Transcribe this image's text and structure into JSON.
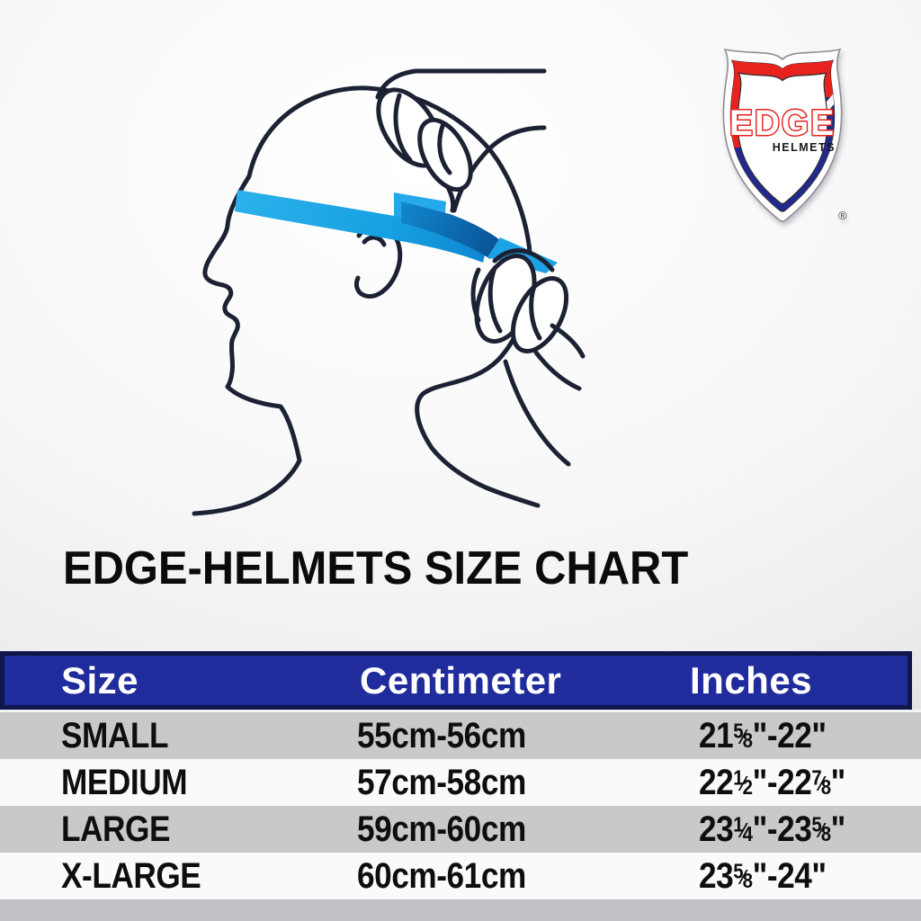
{
  "title": "EDGE-HELMETS SIZE CHART",
  "illustration": {
    "name": "head-measuring-tape-illustration",
    "line_color": "#1c2233",
    "tape_color": "#1f9fe2",
    "tape_fold_color": "#0a65b0"
  },
  "logo": {
    "name": "edge-helmets-shield-logo",
    "brand": "EDGE",
    "sub": "HELMETS",
    "registered": "®",
    "red": "#e8231d",
    "blue": "#202a8f"
  },
  "table": {
    "header_bg": "#202c9c",
    "header_border": "#10154a",
    "header_text_color": "#ffffff",
    "row_alt_bg": "#c9c9cc",
    "row_bg": "#fafafb",
    "headers": [
      "Size",
      "Centimeter",
      "Inches"
    ],
    "rows": [
      {
        "size": "SMALL",
        "centimeter": "55cm-56cm",
        "inches": "21⅝\"-22\""
      },
      {
        "size": "MEDIUM",
        "centimeter": "57cm-58cm",
        "inches": "22½\"-22⅞\""
      },
      {
        "size": "LARGE",
        "centimeter": "59cm-60cm",
        "inches": "23¼\"-23⅝\""
      },
      {
        "size": "X-LARGE",
        "centimeter": "60cm-61cm",
        "inches": "23⅝\"-24\""
      }
    ]
  }
}
